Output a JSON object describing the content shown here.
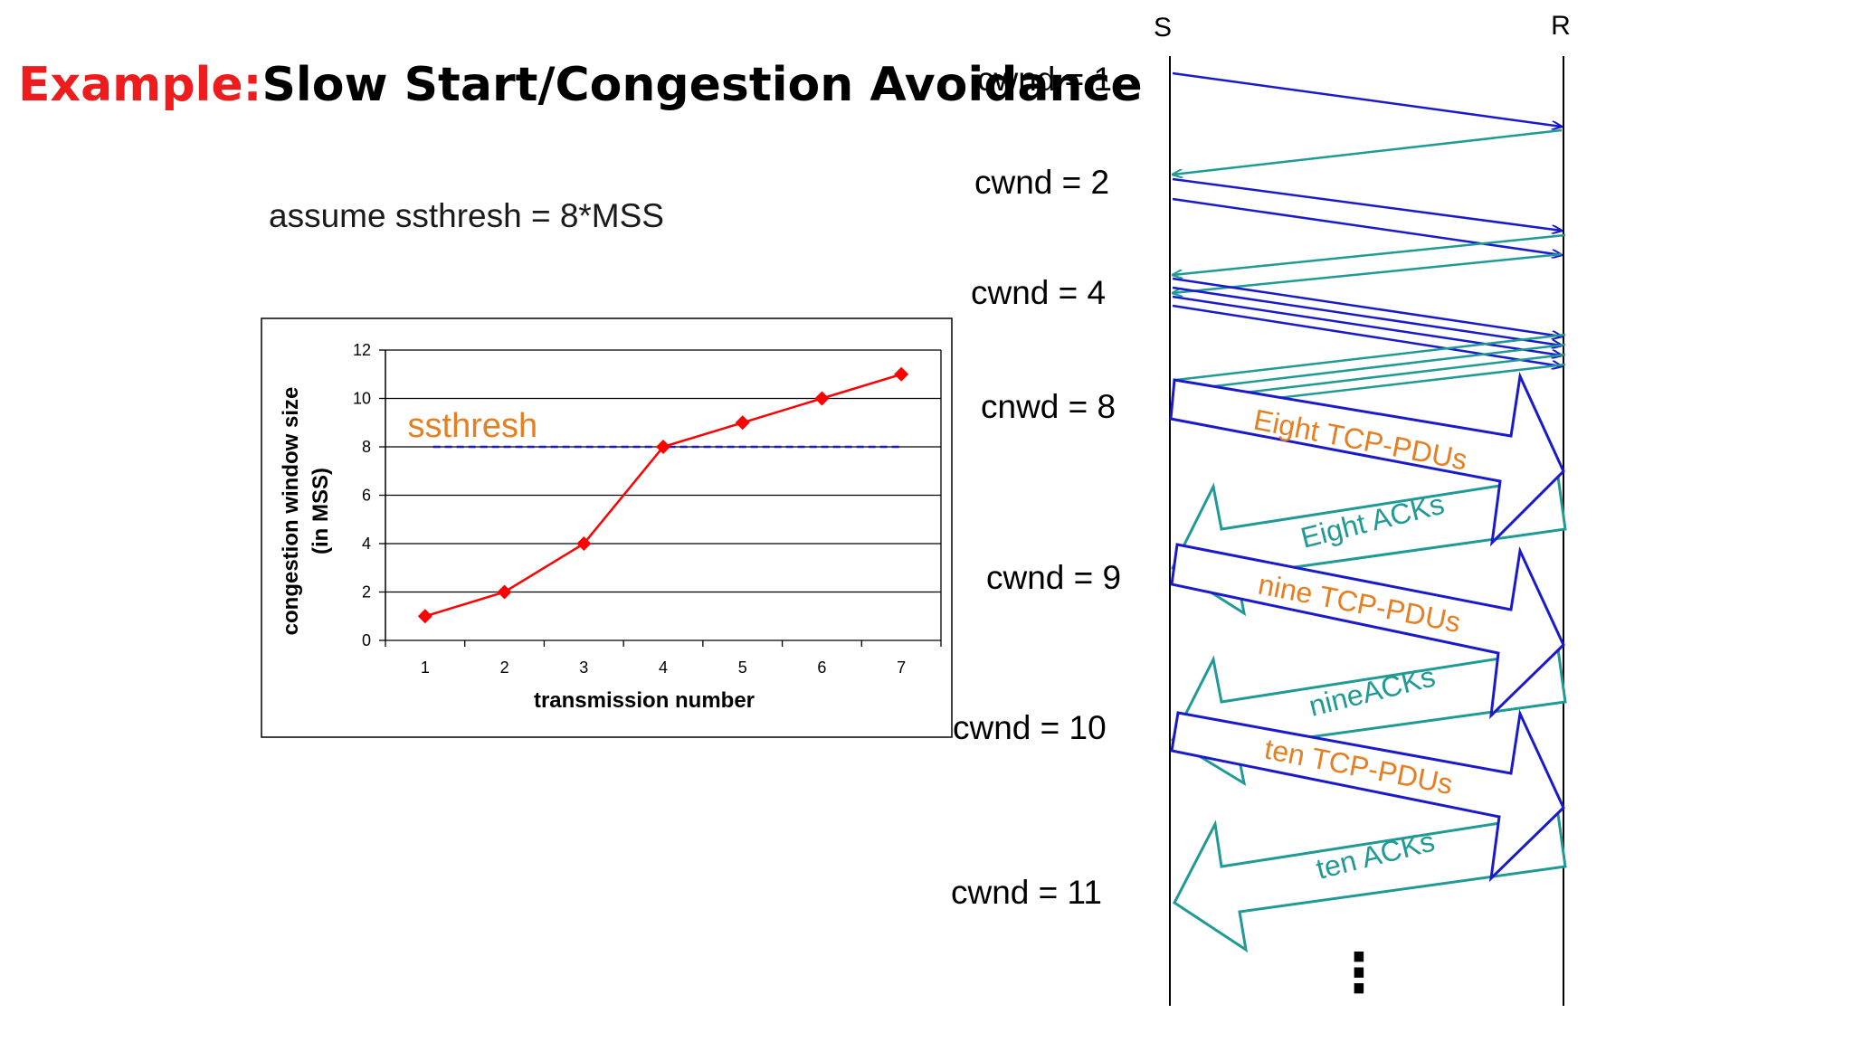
{
  "title": {
    "prefix": "Example:",
    "text": "Slow Start/Congestion Avoidance"
  },
  "assumption": "assume ssthresh = 8*MSS",
  "colors": {
    "title_prefix": "#ee1c1c",
    "data": "#ff0000",
    "send": "#1a1acc",
    "ack": "#1f9a94",
    "annotation": "#e67e22"
  },
  "chart_data": {
    "type": "line",
    "xlabel": "transmission number",
    "ylabel": [
      "congestion window size",
      "(in MSS)"
    ],
    "x": [
      1,
      2,
      3,
      4,
      5,
      6,
      7
    ],
    "series": [
      {
        "values": [
          1,
          2,
          4,
          8,
          9,
          10,
          11
        ]
      }
    ],
    "xlim": [
      0.5,
      7.5
    ],
    "ylim": [
      0,
      12
    ],
    "yticks": [
      0,
      2,
      4,
      6,
      8,
      10,
      12
    ],
    "grid": "horizontal",
    "threshold": {
      "label": "ssthresh",
      "value": 8,
      "style": "dashed"
    }
  },
  "timeline": {
    "sender_label": "S",
    "receiver_label": "R",
    "cwnd_labels": [
      "cwnd = 1",
      "cwnd = 2",
      "cwnd = 4",
      "cnwd = 8",
      "cwnd = 9",
      "cwnd = 10",
      "cwnd = 11"
    ],
    "pdu_labels": [
      "Eight TCP-PDUs",
      "nine TCP-PDUs",
      "ten TCP-PDUs"
    ],
    "ack_labels": [
      "Eight ACKs",
      "nineACKs",
      "ten ACKs"
    ],
    "continuation": "⋮"
  }
}
